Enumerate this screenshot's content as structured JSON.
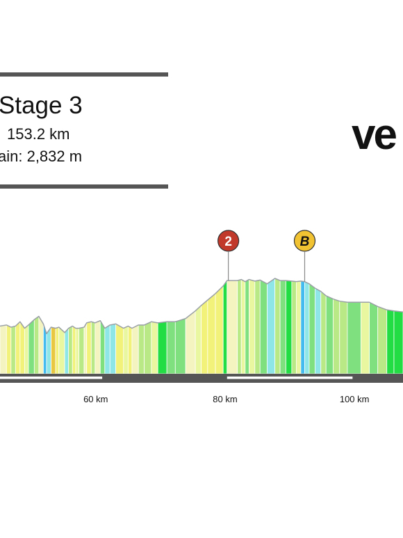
{
  "header": {
    "title": "Stage 3",
    "distance": "153.2 km",
    "elevation_gain": "ain: 2,832 m"
  },
  "logo": {
    "text": "ve"
  },
  "colors": {
    "bar": "#555555",
    "profile_edge": "#9aa0a6",
    "climb_marker": "#c0392b",
    "bonus_marker": "#f1c232",
    "gradient_palette": [
      "#e8f7a0",
      "#f2f27a",
      "#b8e986",
      "#7ee07e",
      "#22dd44",
      "#8ee6e6",
      "#44bbee",
      "#e8c840",
      "#f4f4c0"
    ]
  },
  "chart_data": {
    "type": "area",
    "x_unit": "km",
    "x_tick_labels": [
      "60 km",
      "80 km",
      "100 km"
    ],
    "x_ticks": [
      60,
      80,
      100
    ],
    "xlim": [
      45.2,
      107.5
    ],
    "ylim": [
      0,
      880
    ],
    "grid": false,
    "elevation_profile": {
      "x": [
        45.2,
        46.2,
        46.9,
        47.6,
        48.3,
        49.0,
        49.6,
        50.5,
        51.2,
        51.9,
        52.4,
        53.1,
        53.8,
        54.3,
        55.2,
        55.8,
        56.4,
        56.9,
        57.4,
        58.2,
        58.6,
        59.3,
        59.9,
        60.7,
        61.4,
        62.2,
        63.1,
        64.3,
        65.0,
        65.6,
        66.6,
        67.5,
        68.6,
        69.6,
        71.0,
        72.3,
        73.9,
        75.4,
        76.3,
        77.3,
        78.5,
        79.7,
        80.3,
        81.9,
        82.5,
        83.1,
        83.7,
        84.6,
        85.4,
        86.5,
        87.7,
        88.5,
        89.4,
        90.3,
        91.0,
        91.7,
        92.3,
        93.0,
        93.9,
        94.8,
        95.6,
        96.7,
        97.7,
        98.9,
        101.0,
        102.3,
        103.6,
        105.0,
        106.1,
        107.5
      ],
      "elevation": [
        440,
        450,
        430,
        440,
        480,
        420,
        450,
        500,
        530,
        460,
        370,
        430,
        420,
        430,
        380,
        420,
        440,
        420,
        420,
        430,
        470,
        480,
        470,
        490,
        420,
        450,
        460,
        420,
        440,
        420,
        450,
        450,
        480,
        470,
        480,
        480,
        510,
        580,
        630,
        680,
        740,
        810,
        860,
        860,
        870,
        850,
        870,
        855,
        865,
        830,
        880,
        860,
        860,
        855,
        850,
        855,
        850,
        830,
        790,
        760,
        720,
        690,
        670,
        660,
        660,
        660,
        620,
        590,
        580,
        570
      ]
    },
    "segment_colors": [
      "#f4f4c0",
      "#f2f27a",
      "#b8e986",
      "#f2f27a",
      "#f2f27a",
      "#e8f7a0",
      "#7ee07e",
      "#b8e986",
      "#f4f4c0",
      "#44bbee",
      "#8ee6e6",
      "#e8c840",
      "#f2f27a",
      "#e8f7a0",
      "#8ee6e6",
      "#b8e986",
      "#f2f27a",
      "#e8f7a0",
      "#b8e986",
      "#f4f4c0",
      "#f2f27a",
      "#b8e986",
      "#f4f4c0",
      "#7ee07e",
      "#8ee6e6",
      "#8ee6e6",
      "#f2f27a",
      "#e8f7a0",
      "#f2f27a",
      "#f4f4c0",
      "#b8e986",
      "#b8e986",
      "#e8f7a0",
      "#22dd44",
      "#7ee07e",
      "#7ee07e",
      "#f4f4c0",
      "#e8f7a0",
      "#f2f27a",
      "#f2f27a",
      "#f2f27a",
      "#22dd44",
      "#f4f4c0",
      "#b8e986",
      "#e8f7a0",
      "#7ee07e",
      "#e8f7a0",
      "#b8e986",
      "#7ee07e",
      "#8ee6e6",
      "#b8e986",
      "#7ee07e",
      "#22dd44",
      "#b8e986",
      "#e8f7a0",
      "#44bbee",
      "#8ee6e6",
      "#7ee07e",
      "#8ee6e6",
      "#b8e986",
      "#7ee07e",
      "#b8e986",
      "#b8e986",
      "#7ee07e",
      "#e8f7a0",
      "#7ee07e",
      "#b8e986",
      "#22dd44",
      "#22dd44"
    ],
    "markers": [
      {
        "type": "climb",
        "label": "2",
        "x": 80.5
      },
      {
        "type": "bonus",
        "label": "B",
        "x": 92.3
      }
    ],
    "segment_bars": [
      {
        "x_start": 45.2,
        "x_end": 61.0
      },
      {
        "x_start": 80.3,
        "x_end": 99.7
      }
    ]
  }
}
